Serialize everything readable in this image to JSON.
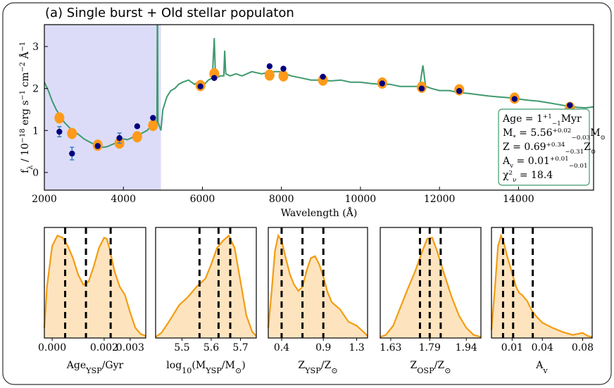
{
  "chart_data": [
    {
      "type": "line",
      "title": "(a) Single burst + Old stellar populaton",
      "xlabel": [
        {
          "text": "Wavelength (Å)"
        }
      ],
      "ylabel": [
        {
          "text": "f"
        },
        {
          "text": "λ",
          "sub": true
        },
        {
          "text": " / 10"
        },
        {
          "text": "−18",
          "sup": true
        },
        {
          "text": " erg s"
        },
        {
          "text": "−1",
          "sup": true
        },
        {
          "text": " cm"
        },
        {
          "text": "−2",
          "sup": true
        },
        {
          "text": " Å"
        },
        {
          "text": "−1",
          "sup": true
        }
      ],
      "xlim": [
        2000,
        15900
      ],
      "ylim": [
        -0.42,
        3.52
      ],
      "xticks": [
        2000,
        4000,
        6000,
        8000,
        10000,
        12000,
        14000
      ],
      "yticks": [
        0,
        1,
        2,
        3
      ],
      "highlight_span": [
        2000,
        4950
      ],
      "highlight_color": "#dcdcf8",
      "series": [
        {
          "kind": "line",
          "color": "#3f9a6e",
          "x": [
            2000,
            2100,
            2200,
            2300,
            2400,
            2500,
            2600,
            2700,
            2800,
            2900,
            3000,
            3100,
            3200,
            3300,
            3400,
            3500,
            3600,
            3700,
            3800,
            3900,
            4000,
            4100,
            4200,
            4300,
            4400,
            4500,
            4600,
            4700,
            4800,
            4850,
            4862,
            4875,
            4950,
            5000,
            5100,
            5200,
            5300,
            5400,
            5500,
            5650,
            5800,
            5900,
            6000,
            6150,
            6250,
            6300,
            6330,
            6360,
            6450,
            6540,
            6563,
            6590,
            6700,
            6850,
            7000,
            7250,
            7500,
            7750,
            8000,
            8100,
            8250,
            8500,
            8750,
            9000,
            9250,
            9500,
            9750,
            10000,
            10250,
            10500,
            10750,
            11000,
            11250,
            11500,
            11580,
            11650,
            11800,
            12000,
            12250,
            12500,
            12750,
            13000,
            13250,
            13500,
            13750,
            14000,
            14250,
            14500,
            14750,
            15000,
            15250,
            15500,
            15700,
            15900
          ],
          "y": [
            2.15,
            1.95,
            1.7,
            1.5,
            1.35,
            1.2,
            1.1,
            1.0,
            0.95,
            0.88,
            0.8,
            0.75,
            0.7,
            0.66,
            0.62,
            0.6,
            0.62,
            0.66,
            0.7,
            0.75,
            0.8,
            0.78,
            0.82,
            0.88,
            0.9,
            0.95,
            1.0,
            1.1,
            1.25,
            1.15,
            4.5,
            1.2,
            1.0,
            1.5,
            1.8,
            1.95,
            2.0,
            2.1,
            2.15,
            2.2,
            2.1,
            2.15,
            2.05,
            2.2,
            2.25,
            3.2,
            2.3,
            2.25,
            2.3,
            2.3,
            2.9,
            2.35,
            2.3,
            2.35,
            2.3,
            2.4,
            2.35,
            2.4,
            2.4,
            2.35,
            2.3,
            2.25,
            2.2,
            2.2,
            2.18,
            2.2,
            2.15,
            2.15,
            2.12,
            2.1,
            2.1,
            2.05,
            2.05,
            2.05,
            2.55,
            2.05,
            2.0,
            1.95,
            1.95,
            1.9,
            1.88,
            1.85,
            1.82,
            1.8,
            1.78,
            1.75,
            1.72,
            1.7,
            1.66,
            1.62,
            1.58,
            1.55,
            1.54,
            1.56
          ]
        },
        {
          "kind": "errorbar",
          "color": "#000080",
          "errcolor": "#3a7fc0",
          "x": [
            2380,
            2700,
            3350,
            3900,
            4350,
            4750,
            5950,
            6300,
            7700,
            8050,
            9050,
            10550,
            11550,
            12500,
            13900,
            15300
          ],
          "y": [
            0.97,
            0.45,
            0.63,
            0.82,
            1.1,
            1.3,
            2.05,
            2.25,
            2.53,
            2.47,
            2.28,
            2.12,
            2.0,
            1.94,
            1.75,
            1.6
          ],
          "yerr": [
            0.12,
            0.15,
            0.05,
            0.12,
            0.04,
            0.04,
            0.03,
            0.03,
            0.03,
            0.03,
            0.03,
            0.03,
            0.03,
            0.03,
            0.03,
            0.03
          ]
        },
        {
          "kind": "scatter",
          "color": "#ff9a1a",
          "x": [
            2380,
            2700,
            3350,
            3900,
            4350,
            4750,
            5950,
            6300,
            7700,
            8050,
            9050,
            10550,
            11550,
            12500,
            13900,
            15300
          ],
          "y": [
            1.3,
            0.93,
            0.65,
            0.7,
            0.85,
            1.12,
            2.07,
            2.35,
            2.32,
            2.3,
            2.2,
            2.13,
            2.03,
            1.97,
            1.77,
            1.55
          ]
        }
      ],
      "annotation": {
        "border_color": "#3f9a6e",
        "lines": [
          [
            {
              "text": "Age = 1"
            },
            {
              "text": "+1",
              "sup": true
            },
            {
              "text": "−1",
              "sub": true
            },
            {
              "text": "Myr"
            }
          ],
          [
            {
              "text": "M"
            },
            {
              "text": "*",
              "sub": true
            },
            {
              "text": " = 5.56"
            },
            {
              "text": "+0.02",
              "sup": true
            },
            {
              "text": "−0.03",
              "sub": true
            },
            {
              "text": "M"
            },
            {
              "text": "⊙",
              "sub": true
            }
          ],
          [
            {
              "text": "Z = 0.69"
            },
            {
              "text": "+0.34",
              "sup": true
            },
            {
              "text": "−0.31",
              "sub": true
            },
            {
              "text": "Z"
            },
            {
              "text": "⊙",
              "sub": true
            }
          ],
          [
            {
              "text": "A"
            },
            {
              "text": "v",
              "sub": true
            },
            {
              "text": " = 0.01"
            },
            {
              "text": "+0.01",
              "sup": true
            },
            {
              "text": "−0.01",
              "sub": true
            }
          ],
          [
            {
              "text": "χ"
            },
            {
              "text": "2",
              "sup": true
            },
            {
              "text": "ν",
              "sub": true
            },
            {
              "text": " = 18.4"
            }
          ]
        ]
      }
    },
    {
      "type": "area",
      "color": "#f39c12",
      "fill": "#fde4bf",
      "xlabel": [
        {
          "text": "Age"
        },
        {
          "text": "YSP",
          "sub": true
        },
        {
          "text": "/Gyr"
        }
      ],
      "xlim": [
        -0.0003,
        0.0036
      ],
      "ylim": [
        0,
        1.08
      ],
      "xticks": [
        {
          "value": 0,
          "label": "0.000"
        },
        {
          "value": 0.002,
          "label": "0.002"
        },
        {
          "value": 0.003,
          "label": "0.003"
        }
      ],
      "x": [
        -0.0003,
        -0.0002,
        0.0,
        0.0002,
        0.0004,
        0.0006,
        0.0008,
        0.001,
        0.0012,
        0.0014,
        0.0016,
        0.0018,
        0.002,
        0.0021,
        0.0022,
        0.0024,
        0.0026,
        0.0028,
        0.003,
        0.0032,
        0.0034,
        0.0036
      ],
      "y": [
        0.1,
        0.5,
        0.9,
        1.0,
        0.98,
        0.9,
        0.78,
        0.62,
        0.52,
        0.55,
        0.7,
        0.88,
        0.98,
        0.97,
        0.88,
        0.65,
        0.5,
        0.42,
        0.25,
        0.1,
        0.04,
        0.02
      ],
      "markers": [
        0.0005,
        0.0013,
        0.00225
      ]
    },
    {
      "type": "area",
      "color": "#f39c12",
      "fill": "#fde4bf",
      "xlabel": [
        {
          "text": "log"
        },
        {
          "text": "10",
          "sub": true
        },
        {
          "text": "(M"
        },
        {
          "text": "YSP",
          "sub": true
        },
        {
          "text": "/M"
        },
        {
          "text": "⊙",
          "sub": true
        },
        {
          "text": ")"
        }
      ],
      "xlim": [
        5.41,
        5.754
      ],
      "ylim": [
        0,
        1.08
      ],
      "xticks": [
        5.5,
        5.6,
        5.7
      ],
      "x": [
        5.41,
        5.43,
        5.46,
        5.49,
        5.52,
        5.55,
        5.58,
        5.6,
        5.62,
        5.64,
        5.66,
        5.68,
        5.7,
        5.72,
        5.74,
        5.754
      ],
      "y": [
        0.01,
        0.05,
        0.18,
        0.32,
        0.4,
        0.5,
        0.58,
        0.72,
        0.88,
        0.95,
        1.0,
        0.88,
        0.55,
        0.22,
        0.06,
        0.02
      ],
      "markers": [
        5.56,
        5.625,
        5.665
      ]
    },
    {
      "type": "area",
      "color": "#f39c12",
      "fill": "#fde4bf",
      "xlabel": [
        {
          "text": "Z"
        },
        {
          "text": "YSP",
          "sub": true
        },
        {
          "text": "/Z"
        },
        {
          "text": "⊙",
          "sub": true
        }
      ],
      "xlim": [
        0.24,
        1.43
      ],
      "ylim": [
        0,
        1.08
      ],
      "xticks": [
        0.4,
        0.9,
        1.3
      ],
      "x": [
        0.24,
        0.28,
        0.32,
        0.36,
        0.4,
        0.45,
        0.5,
        0.55,
        0.6,
        0.65,
        0.7,
        0.75,
        0.8,
        0.85,
        0.9,
        0.95,
        1.0,
        1.1,
        1.2,
        1.3,
        1.38,
        1.43
      ],
      "y": [
        0.1,
        0.45,
        0.85,
        1.0,
        0.95,
        0.78,
        0.62,
        0.52,
        0.46,
        0.5,
        0.66,
        0.78,
        0.8,
        0.72,
        0.6,
        0.45,
        0.35,
        0.28,
        0.16,
        0.12,
        0.06,
        0.02
      ],
      "markers": [
        0.4,
        0.65,
        0.9
      ]
    },
    {
      "type": "area",
      "color": "#f39c12",
      "fill": "#fde4bf",
      "xlabel": [
        {
          "text": "Z"
        },
        {
          "text": "OSP",
          "sub": true
        },
        {
          "text": "/Z"
        },
        {
          "text": "⊙",
          "sub": true
        }
      ],
      "xlim": [
        1.587,
        2.0
      ],
      "ylim": [
        0,
        1.08
      ],
      "xticks": [
        1.63,
        1.79,
        1.94
      ],
      "x": [
        1.587,
        1.61,
        1.64,
        1.67,
        1.7,
        1.73,
        1.76,
        1.78,
        1.8,
        1.82,
        1.85,
        1.88,
        1.91,
        1.94,
        1.97,
        2.0
      ],
      "y": [
        0.01,
        0.03,
        0.12,
        0.3,
        0.48,
        0.65,
        0.85,
        0.97,
        0.98,
        0.85,
        0.62,
        0.4,
        0.22,
        0.1,
        0.03,
        0.01
      ],
      "markers": [
        1.75,
        1.79,
        1.835
      ]
    },
    {
      "type": "area",
      "color": "#f39c12",
      "fill": "#fde4bf",
      "xlabel": [
        {
          "text": "A"
        },
        {
          "text": "v",
          "sub": true
        }
      ],
      "xlim": [
        -0.0105,
        0.0895
      ],
      "ylim": [
        0,
        1.08
      ],
      "xticks": [
        {
          "value": 0.01,
          "label": "0.01"
        },
        {
          "value": 0.04,
          "label": "0.04"
        },
        {
          "value": 0.08,
          "label": "0.08"
        }
      ],
      "x": [
        -0.0105,
        -0.007,
        -0.004,
        -0.001,
        0.002,
        0.005,
        0.008,
        0.011,
        0.014,
        0.017,
        0.02,
        0.025,
        0.03,
        0.035,
        0.04,
        0.05,
        0.06,
        0.07,
        0.075,
        0.08,
        0.085,
        0.0895
      ],
      "y": [
        0.08,
        0.5,
        0.9,
        1.0,
        0.92,
        0.8,
        0.7,
        0.6,
        0.5,
        0.44,
        0.42,
        0.36,
        0.26,
        0.2,
        0.15,
        0.1,
        0.06,
        0.03,
        0.04,
        0.05,
        0.02,
        0.01
      ],
      "markers": [
        0.001,
        0.011,
        0.0305
      ]
    }
  ]
}
